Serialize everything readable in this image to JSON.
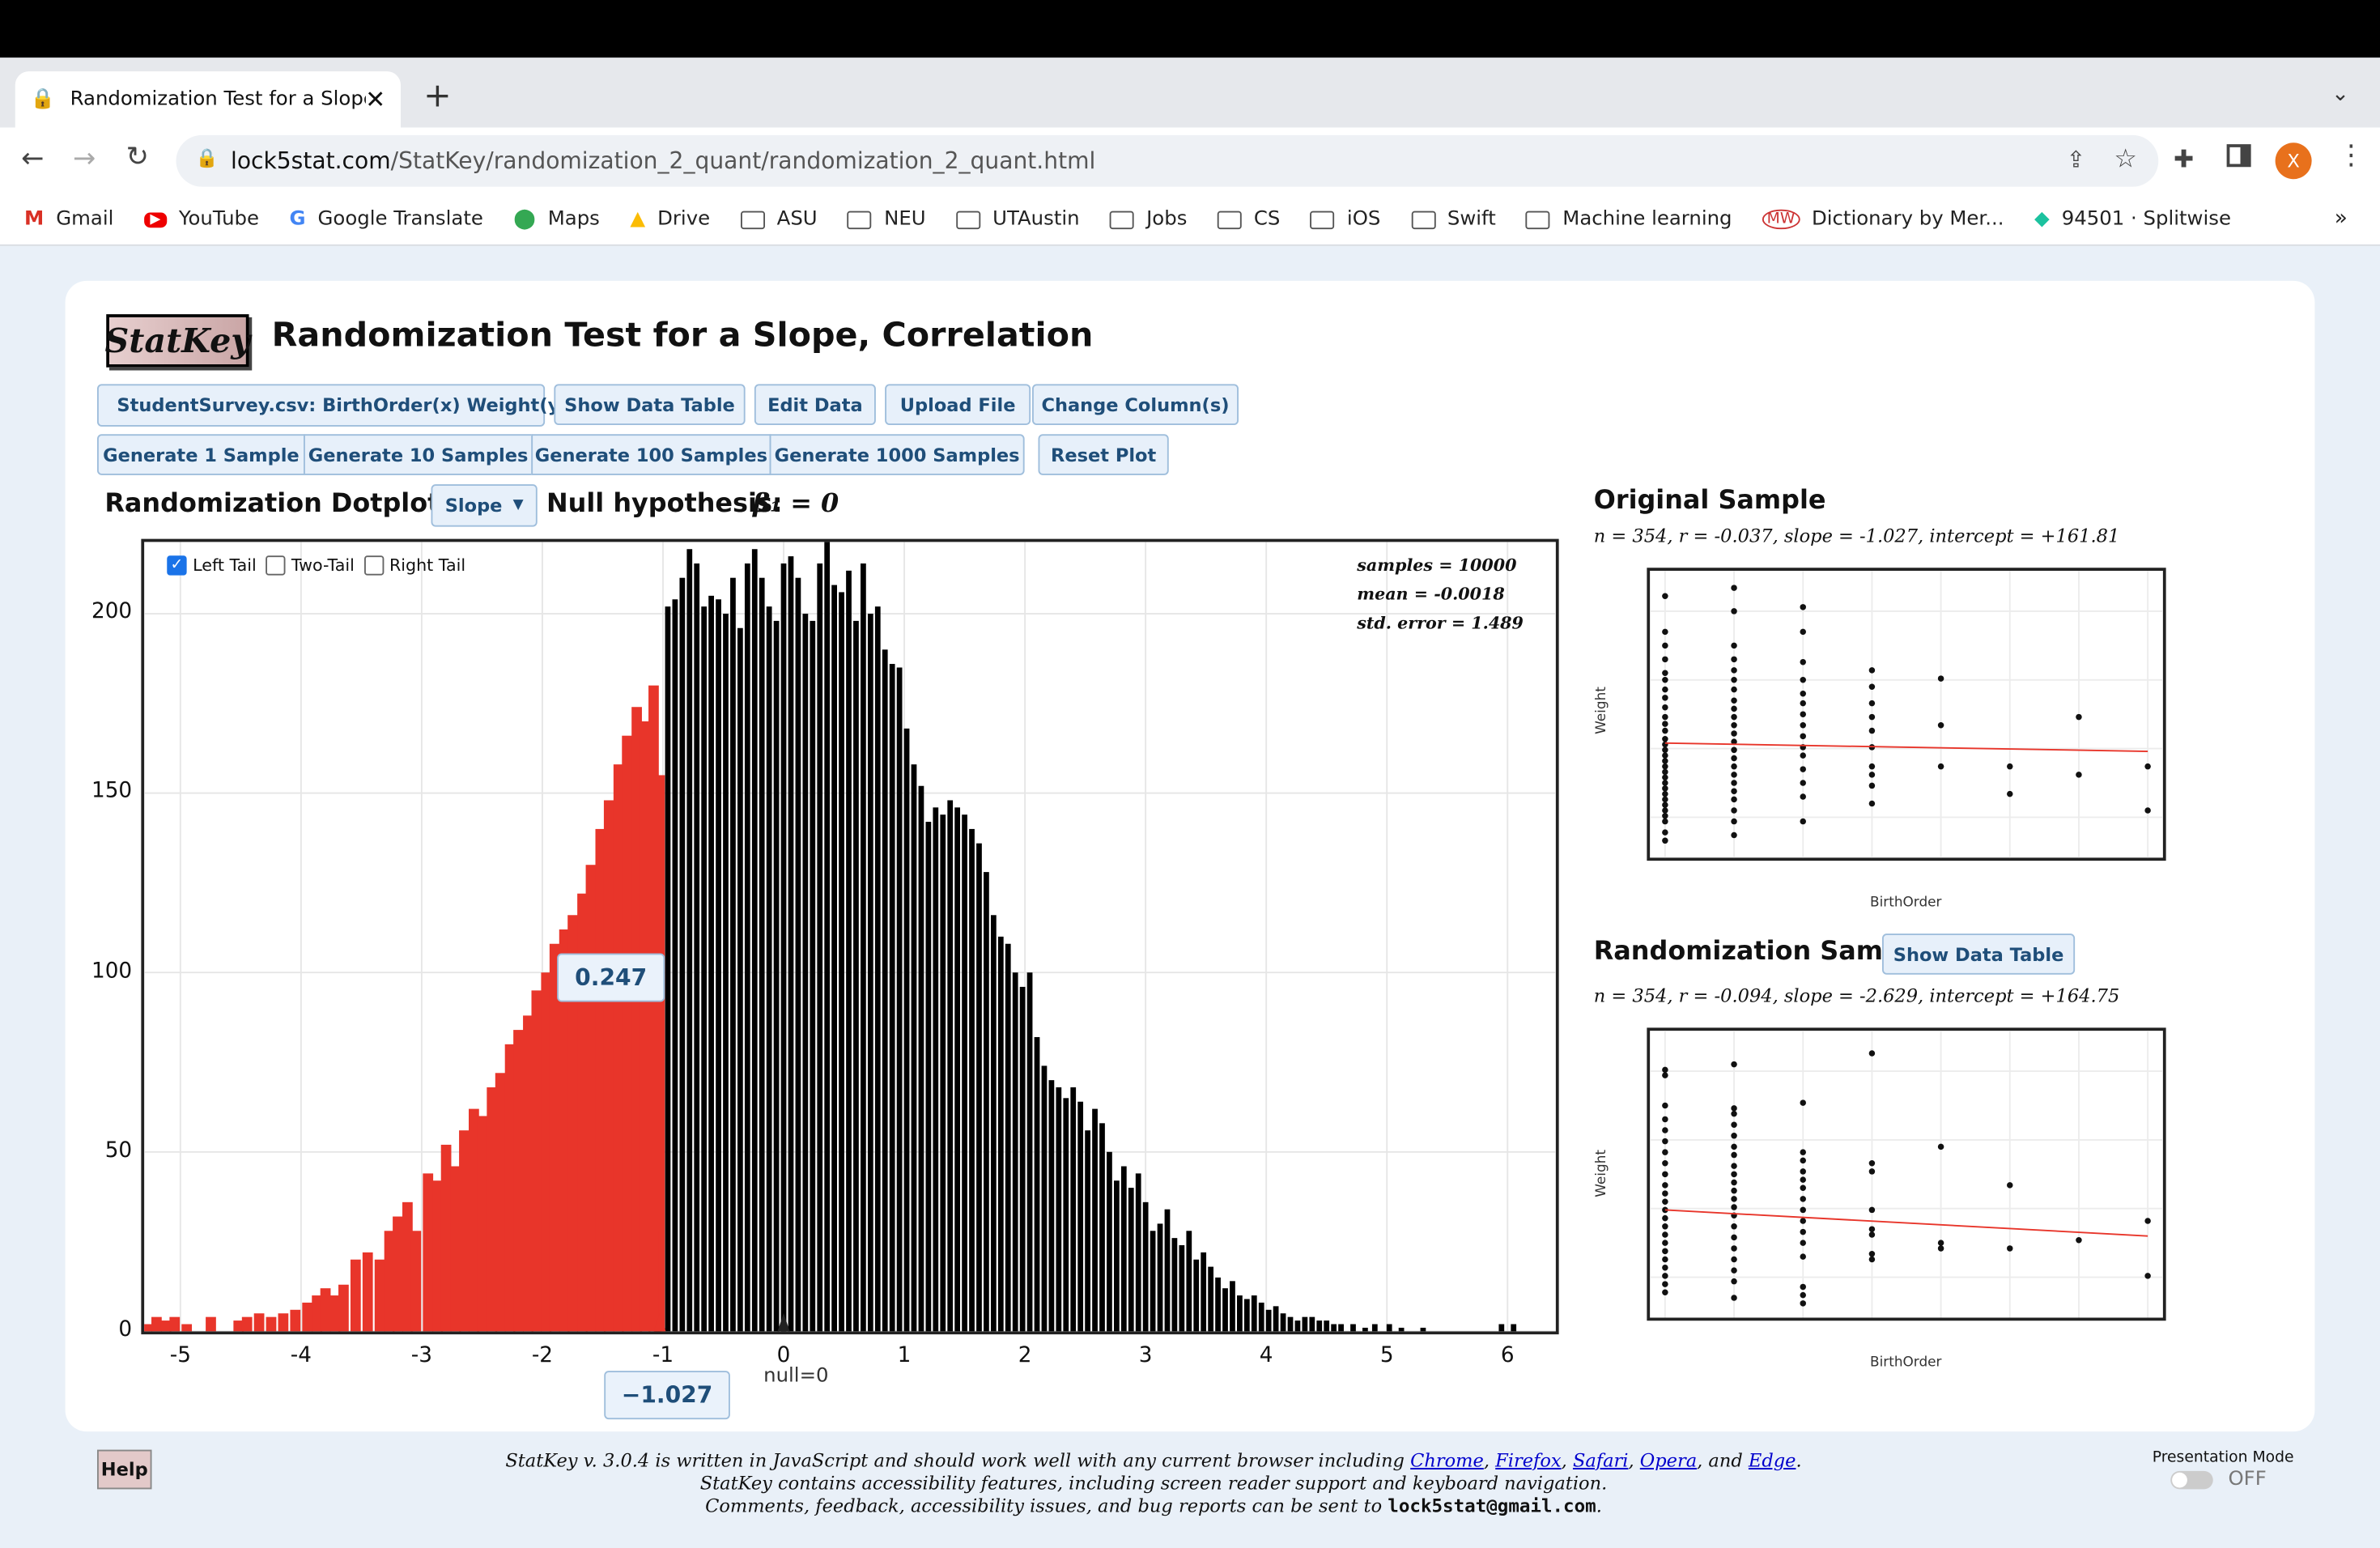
{
  "browser": {
    "tab_title": "Randomization Test for a Slope, Correlation",
    "url_domain": "lock5stat.com",
    "url_path": "/StatKey/randomization_2_quant/randomization_2_quant.html",
    "profile_initial": "X",
    "bookmarks": [
      "Gmail",
      "YouTube",
      "Google Translate",
      "Maps",
      "Drive",
      "ASU",
      "NEU",
      "UTAustin",
      "Jobs",
      "CS",
      "iOS",
      "Swift",
      "Machine learning",
      "Dictionary by Mer...",
      "94501 · Splitwise"
    ]
  },
  "app": {
    "logo": "StatKey",
    "title": "Randomization Test for a Slope, Correlation",
    "dataset_select": "StudentSurvey.csv: BirthOrder(x) Weight(y)",
    "buttons": {
      "show_data_table": "Show Data Table",
      "edit_data": "Edit Data",
      "upload_file": "Upload File",
      "change_columns": "Change Column(s)",
      "gen1": "Generate 1 Sample",
      "gen10": "Generate 10 Samples",
      "gen100": "Generate 100 Samples",
      "gen1000": "Generate 1000 Samples",
      "reset": "Reset Plot"
    },
    "dotplot_label": "Randomization Dotplot of",
    "statistic_select": "Slope",
    "null_hypothesis_label": "Null hypothesis:",
    "null_hypothesis_expr": "β₁ = 0",
    "tails": {
      "left": "Left Tail",
      "two": "Two-Tail",
      "right": "Right Tail",
      "left_checked": true
    },
    "summary": {
      "samples": "samples = 10000",
      "mean": "mean = -0.0018",
      "se": "std. error = 1.489"
    },
    "tail_proportion": "0.247",
    "observed_value": "−1.027",
    "null_label": "null=0",
    "original": {
      "title": "Original Sample",
      "stats": "n = 354, r = -0.037, slope = -1.027, intercept = +161.81",
      "xlabel": "BirthOrder",
      "ylabel": "Weight"
    },
    "random": {
      "title": "Randomization Sample",
      "button": "Show Data Table",
      "stats": "n = 354, r = -0.094, slope = -2.629, intercept = +164.75",
      "xlabel": "BirthOrder",
      "ylabel": "Weight"
    },
    "help": "Help",
    "footer": {
      "line1_pre": "StatKey v. 3.0.4 is written in JavaScript and should work well with any current browser including",
      "browsers": [
        "Chrome",
        "Firefox",
        "Safari",
        "Opera",
        "Edge"
      ],
      "line2": "StatKey contains accessibility features, including screen reader support and keyboard navigation.",
      "line3_pre": "Comments, feedback, accessibility issues, and bug reports can be sent to",
      "email": "lock5stat@gmail.com"
    },
    "presentation_mode": {
      "label": "Presentation Mode",
      "state": "OFF"
    }
  },
  "chart_data": {
    "type": "bar",
    "xlim": [
      -5.3,
      6.4
    ],
    "ylim": [
      0,
      220
    ],
    "x_ticks": [
      -5,
      -4,
      -3,
      -2,
      -1,
      0,
      1,
      2,
      3,
      4,
      5,
      6
    ],
    "y_ticks": [
      0,
      50,
      100,
      150,
      200
    ],
    "cut": -1.027,
    "grid": true,
    "left_tail_color": "#e8352a",
    "bar_color": "#000000",
    "bins": [
      [
        -5.28,
        2
      ],
      [
        -5.2,
        4
      ],
      [
        -5.12,
        3
      ],
      [
        -5.05,
        4
      ],
      [
        -4.95,
        2
      ],
      [
        -4.75,
        4
      ],
      [
        -4.52,
        3
      ],
      [
        -4.45,
        4
      ],
      [
        -4.35,
        5
      ],
      [
        -4.25,
        4
      ],
      [
        -4.15,
        5
      ],
      [
        -4.05,
        6
      ],
      [
        -3.95,
        8
      ],
      [
        -3.87,
        10
      ],
      [
        -3.8,
        12
      ],
      [
        -3.72,
        10
      ],
      [
        -3.65,
        13
      ],
      [
        -3.55,
        20
      ],
      [
        -3.45,
        22
      ],
      [
        -3.35,
        20
      ],
      [
        -3.27,
        28
      ],
      [
        -3.2,
        32
      ],
      [
        -3.12,
        36
      ],
      [
        -3.05,
        28
      ],
      [
        -2.95,
        44
      ],
      [
        -2.87,
        42
      ],
      [
        -2.8,
        52
      ],
      [
        -2.72,
        46
      ],
      [
        -2.65,
        56
      ],
      [
        -2.57,
        62
      ],
      [
        -2.5,
        60
      ],
      [
        -2.42,
        68
      ],
      [
        -2.35,
        72
      ],
      [
        -2.27,
        80
      ],
      [
        -2.2,
        84
      ],
      [
        -2.12,
        88
      ],
      [
        -2.05,
        95
      ],
      [
        -1.97,
        100
      ],
      [
        -1.9,
        108
      ],
      [
        -1.82,
        112
      ],
      [
        -1.75,
        116
      ],
      [
        -1.67,
        122
      ],
      [
        -1.6,
        130
      ],
      [
        -1.52,
        140
      ],
      [
        -1.45,
        148
      ],
      [
        -1.37,
        158
      ],
      [
        -1.3,
        166
      ],
      [
        -1.22,
        174
      ],
      [
        -1.15,
        170
      ],
      [
        -1.08,
        180
      ],
      [
        -1.03,
        155
      ],
      [
        -0.96,
        202
      ],
      [
        -0.9,
        204
      ],
      [
        -0.84,
        210
      ],
      [
        -0.78,
        218
      ],
      [
        -0.72,
        214
      ],
      [
        -0.66,
        202
      ],
      [
        -0.6,
        205
      ],
      [
        -0.54,
        204
      ],
      [
        -0.48,
        200
      ],
      [
        -0.42,
        210
      ],
      [
        -0.36,
        196
      ],
      [
        -0.3,
        214
      ],
      [
        -0.24,
        218
      ],
      [
        -0.18,
        210
      ],
      [
        -0.12,
        202
      ],
      [
        -0.06,
        198
      ],
      [
        0.0,
        214
      ],
      [
        0.06,
        216
      ],
      [
        0.12,
        210
      ],
      [
        0.18,
        200
      ],
      [
        0.24,
        198
      ],
      [
        0.3,
        214
      ],
      [
        0.36,
        220
      ],
      [
        0.42,
        208
      ],
      [
        0.48,
        206
      ],
      [
        0.54,
        212
      ],
      [
        0.6,
        198
      ],
      [
        0.66,
        214
      ],
      [
        0.72,
        200
      ],
      [
        0.78,
        202
      ],
      [
        0.84,
        190
      ],
      [
        0.9,
        186
      ],
      [
        0.96,
        185
      ],
      [
        1.02,
        168
      ],
      [
        1.08,
        158
      ],
      [
        1.14,
        152
      ],
      [
        1.2,
        142
      ],
      [
        1.26,
        146
      ],
      [
        1.32,
        144
      ],
      [
        1.38,
        148
      ],
      [
        1.44,
        146
      ],
      [
        1.5,
        144
      ],
      [
        1.56,
        140
      ],
      [
        1.62,
        136
      ],
      [
        1.68,
        128
      ],
      [
        1.74,
        116
      ],
      [
        1.8,
        110
      ],
      [
        1.86,
        108
      ],
      [
        1.92,
        100
      ],
      [
        1.98,
        96
      ],
      [
        2.04,
        100
      ],
      [
        2.1,
        82
      ],
      [
        2.16,
        74
      ],
      [
        2.22,
        70
      ],
      [
        2.28,
        68
      ],
      [
        2.34,
        65
      ],
      [
        2.4,
        68
      ],
      [
        2.46,
        64
      ],
      [
        2.52,
        56
      ],
      [
        2.58,
        62
      ],
      [
        2.64,
        58
      ],
      [
        2.7,
        50
      ],
      [
        2.76,
        42
      ],
      [
        2.82,
        46
      ],
      [
        2.88,
        40
      ],
      [
        2.94,
        44
      ],
      [
        3.0,
        36
      ],
      [
        3.06,
        28
      ],
      [
        3.12,
        30
      ],
      [
        3.18,
        34
      ],
      [
        3.24,
        26
      ],
      [
        3.3,
        24
      ],
      [
        3.36,
        28
      ],
      [
        3.42,
        20
      ],
      [
        3.48,
        22
      ],
      [
        3.54,
        18
      ],
      [
        3.6,
        15
      ],
      [
        3.66,
        12
      ],
      [
        3.72,
        14
      ],
      [
        3.78,
        10
      ],
      [
        3.84,
        9
      ],
      [
        3.9,
        10
      ],
      [
        3.96,
        8
      ],
      [
        4.02,
        6
      ],
      [
        4.08,
        7
      ],
      [
        4.14,
        5
      ],
      [
        4.2,
        4
      ],
      [
        4.26,
        3
      ],
      [
        4.32,
        4
      ],
      [
        4.38,
        4
      ],
      [
        4.44,
        3
      ],
      [
        4.5,
        3
      ],
      [
        4.56,
        2
      ],
      [
        4.62,
        2
      ],
      [
        4.72,
        2
      ],
      [
        4.82,
        1
      ],
      [
        4.9,
        2
      ],
      [
        5.02,
        2
      ],
      [
        5.12,
        1
      ],
      [
        5.3,
        1
      ],
      [
        5.95,
        2
      ],
      [
        6.05,
        2
      ]
    ]
  },
  "scatter_original": {
    "points": [
      [
        1,
        186
      ],
      [
        1,
        160
      ],
      [
        1,
        150
      ],
      [
        1,
        140
      ],
      [
        1,
        130
      ],
      [
        1,
        125
      ],
      [
        1,
        118
      ],
      [
        1,
        112
      ],
      [
        1,
        105
      ],
      [
        1,
        98
      ],
      [
        1,
        93
      ],
      [
        1,
        88
      ],
      [
        1,
        82
      ],
      [
        1,
        78
      ],
      [
        1,
        74
      ],
      [
        1,
        70
      ],
      [
        1,
        66
      ],
      [
        1,
        62
      ],
      [
        1,
        58
      ],
      [
        1,
        54
      ],
      [
        1,
        50
      ],
      [
        1,
        46
      ],
      [
        1,
        42
      ],
      [
        1,
        38
      ],
      [
        1,
        34
      ],
      [
        1,
        30
      ],
      [
        1,
        26
      ],
      [
        1,
        22
      ],
      [
        1,
        14
      ],
      [
        1,
        8
      ],
      [
        2,
        192
      ],
      [
        2,
        175
      ],
      [
        2,
        150
      ],
      [
        2,
        140
      ],
      [
        2,
        132
      ],
      [
        2,
        125
      ],
      [
        2,
        118
      ],
      [
        2,
        110
      ],
      [
        2,
        104
      ],
      [
        2,
        98
      ],
      [
        2,
        92
      ],
      [
        2,
        86
      ],
      [
        2,
        80
      ],
      [
        2,
        74
      ],
      [
        2,
        68
      ],
      [
        2,
        62
      ],
      [
        2,
        56
      ],
      [
        2,
        50
      ],
      [
        2,
        44
      ],
      [
        2,
        38
      ],
      [
        2,
        30
      ],
      [
        2,
        22
      ],
      [
        2,
        12
      ],
      [
        3,
        178
      ],
      [
        3,
        160
      ],
      [
        3,
        138
      ],
      [
        3,
        125
      ],
      [
        3,
        115
      ],
      [
        3,
        108
      ],
      [
        3,
        100
      ],
      [
        3,
        92
      ],
      [
        3,
        84
      ],
      [
        3,
        76
      ],
      [
        3,
        70
      ],
      [
        3,
        60
      ],
      [
        3,
        50
      ],
      [
        3,
        40
      ],
      [
        3,
        22
      ],
      [
        4,
        132
      ],
      [
        4,
        120
      ],
      [
        4,
        108
      ],
      [
        4,
        98
      ],
      [
        4,
        88
      ],
      [
        4,
        76
      ],
      [
        4,
        62
      ],
      [
        4,
        56
      ],
      [
        4,
        48
      ],
      [
        4,
        35
      ],
      [
        5,
        126
      ],
      [
        5,
        92
      ],
      [
        5,
        62
      ],
      [
        6,
        62
      ],
      [
        6,
        42
      ],
      [
        7,
        98
      ],
      [
        7,
        56
      ],
      [
        8,
        62
      ],
      [
        8,
        30
      ]
    ],
    "line": [
      [
        1,
        79
      ],
      [
        8,
        73
      ]
    ]
  },
  "scatter_random": {
    "points": [
      [
        1,
        176
      ],
      [
        1,
        172
      ],
      [
        1,
        150
      ],
      [
        1,
        140
      ],
      [
        1,
        132
      ],
      [
        1,
        124
      ],
      [
        1,
        116
      ],
      [
        1,
        108
      ],
      [
        1,
        100
      ],
      [
        1,
        92
      ],
      [
        1,
        86
      ],
      [
        1,
        80
      ],
      [
        1,
        74
      ],
      [
        1,
        68
      ],
      [
        1,
        62
      ],
      [
        1,
        56
      ],
      [
        1,
        50
      ],
      [
        1,
        44
      ],
      [
        1,
        38
      ],
      [
        1,
        32
      ],
      [
        1,
        26
      ],
      [
        1,
        20
      ],
      [
        1,
        14
      ],
      [
        2,
        180
      ],
      [
        2,
        148
      ],
      [
        2,
        144
      ],
      [
        2,
        136
      ],
      [
        2,
        128
      ],
      [
        2,
        120
      ],
      [
        2,
        114
      ],
      [
        2,
        106
      ],
      [
        2,
        100
      ],
      [
        2,
        94
      ],
      [
        2,
        88
      ],
      [
        2,
        82
      ],
      [
        2,
        76
      ],
      [
        2,
        70
      ],
      [
        2,
        62
      ],
      [
        2,
        54
      ],
      [
        2,
        46
      ],
      [
        2,
        38
      ],
      [
        2,
        30
      ],
      [
        2,
        22
      ],
      [
        2,
        10
      ],
      [
        3,
        152
      ],
      [
        3,
        116
      ],
      [
        3,
        110
      ],
      [
        3,
        102
      ],
      [
        3,
        96
      ],
      [
        3,
        90
      ],
      [
        3,
        82
      ],
      [
        3,
        74
      ],
      [
        3,
        66
      ],
      [
        3,
        58
      ],
      [
        3,
        50
      ],
      [
        3,
        40
      ],
      [
        3,
        18
      ],
      [
        3,
        12
      ],
      [
        3,
        6
      ],
      [
        4,
        188
      ],
      [
        4,
        108
      ],
      [
        4,
        102
      ],
      [
        4,
        74
      ],
      [
        4,
        60
      ],
      [
        4,
        56
      ],
      [
        4,
        42
      ],
      [
        4,
        38
      ],
      [
        5,
        120
      ],
      [
        5,
        50
      ],
      [
        5,
        46
      ],
      [
        6,
        92
      ],
      [
        6,
        46
      ],
      [
        7,
        52
      ],
      [
        8,
        66
      ],
      [
        8,
        26
      ]
    ],
    "line": [
      [
        1,
        74
      ],
      [
        8,
        55
      ]
    ]
  }
}
